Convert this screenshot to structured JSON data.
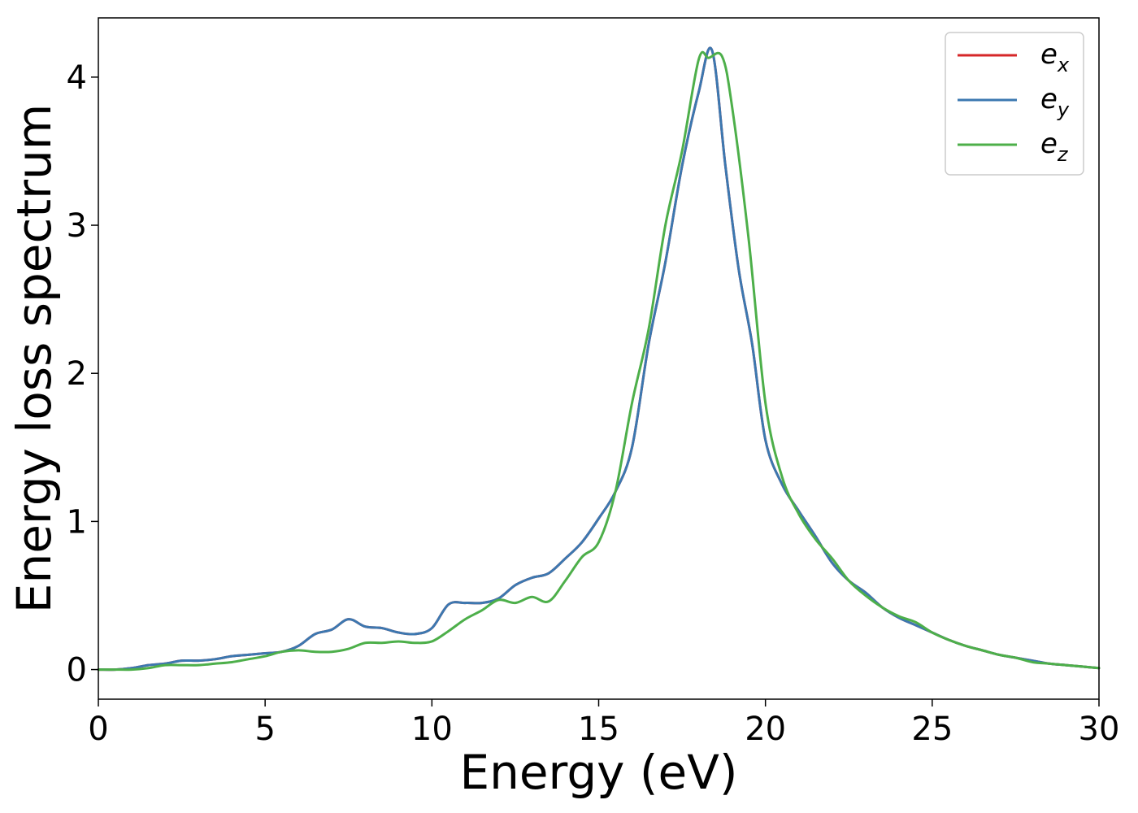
{
  "chart_data": {
    "type": "line",
    "title": "",
    "xlabel": "Energy (eV)",
    "ylabel": "Energy loss spectrum",
    "xlim": [
      0,
      30
    ],
    "ylim": [
      -0.2,
      4.4
    ],
    "xticks": [
      0,
      5,
      10,
      15,
      20,
      25,
      30
    ],
    "yticks": [
      0,
      1,
      2,
      3,
      4
    ],
    "grid": false,
    "legend_position": "top-right",
    "series": [
      {
        "name": "e_x",
        "label_base": "e",
        "label_sub": "x",
        "color": "#d62728",
        "x": [
          0,
          0.5,
          1,
          1.5,
          2,
          2.5,
          3,
          3.5,
          4,
          4.5,
          5,
          5.5,
          6,
          6.5,
          7,
          7.5,
          8,
          8.5,
          9,
          9.5,
          10,
          10.5,
          11,
          11.5,
          12,
          12.5,
          13,
          13.5,
          14,
          14.5,
          15,
          15.5,
          16,
          16.5,
          17,
          17.5,
          18,
          18.4,
          18.8,
          19.2,
          19.6,
          20,
          20.5,
          21,
          21.5,
          22,
          22.5,
          23,
          23.5,
          24,
          24.5,
          25,
          25.5,
          26,
          26.5,
          27,
          27.5,
          28,
          28.5,
          29,
          29.5,
          30
        ],
        "y": [
          0,
          0,
          0.01,
          0.03,
          0.04,
          0.06,
          0.06,
          0.07,
          0.09,
          0.1,
          0.11,
          0.12,
          0.16,
          0.24,
          0.27,
          0.34,
          0.29,
          0.28,
          0.25,
          0.24,
          0.28,
          0.44,
          0.45,
          0.45,
          0.48,
          0.57,
          0.62,
          0.65,
          0.75,
          0.86,
          1.02,
          1.2,
          1.5,
          2.2,
          2.75,
          3.4,
          3.9,
          4.18,
          3.4,
          2.7,
          2.2,
          1.55,
          1.25,
          1.07,
          0.9,
          0.72,
          0.6,
          0.52,
          0.42,
          0.35,
          0.3,
          0.25,
          0.2,
          0.16,
          0.13,
          0.1,
          0.08,
          0.06,
          0.04,
          0.03,
          0.02,
          0.01
        ]
      },
      {
        "name": "e_y",
        "label_base": "e",
        "label_sub": "y",
        "color": "#3c78b0",
        "x": [
          0,
          0.5,
          1,
          1.5,
          2,
          2.5,
          3,
          3.5,
          4,
          4.5,
          5,
          5.5,
          6,
          6.5,
          7,
          7.5,
          8,
          8.5,
          9,
          9.5,
          10,
          10.5,
          11,
          11.5,
          12,
          12.5,
          13,
          13.5,
          14,
          14.5,
          15,
          15.5,
          16,
          16.5,
          17,
          17.5,
          18,
          18.4,
          18.8,
          19.2,
          19.6,
          20,
          20.5,
          21,
          21.5,
          22,
          22.5,
          23,
          23.5,
          24,
          24.5,
          25,
          25.5,
          26,
          26.5,
          27,
          27.5,
          28,
          28.5,
          29,
          29.5,
          30
        ],
        "y": [
          0,
          0,
          0.01,
          0.03,
          0.04,
          0.06,
          0.06,
          0.07,
          0.09,
          0.1,
          0.11,
          0.12,
          0.16,
          0.24,
          0.27,
          0.34,
          0.29,
          0.28,
          0.25,
          0.24,
          0.28,
          0.44,
          0.45,
          0.45,
          0.48,
          0.57,
          0.62,
          0.65,
          0.75,
          0.86,
          1.02,
          1.2,
          1.5,
          2.2,
          2.75,
          3.4,
          3.9,
          4.18,
          3.4,
          2.7,
          2.2,
          1.55,
          1.25,
          1.07,
          0.9,
          0.72,
          0.6,
          0.52,
          0.42,
          0.35,
          0.3,
          0.25,
          0.2,
          0.16,
          0.13,
          0.1,
          0.08,
          0.06,
          0.04,
          0.03,
          0.02,
          0.01
        ]
      },
      {
        "name": "e_z",
        "label_base": "e",
        "label_sub": "z",
        "color": "#4daf4a",
        "x": [
          0,
          0.5,
          1,
          1.5,
          2,
          2.5,
          3,
          3.5,
          4,
          4.5,
          5,
          5.5,
          6,
          6.5,
          7,
          7.5,
          8,
          8.5,
          9,
          9.5,
          10,
          10.5,
          11,
          11.5,
          12,
          12.5,
          13,
          13.5,
          14,
          14.5,
          15,
          15.5,
          16,
          16.5,
          17,
          17.5,
          18,
          18.3,
          18.7,
          19,
          19.5,
          20,
          20.5,
          21,
          21.5,
          22,
          22.5,
          23,
          23.5,
          24,
          24.5,
          25,
          25.5,
          26,
          26.5,
          27,
          27.5,
          28,
          28.5,
          29,
          29.5,
          30
        ],
        "y": [
          0,
          0,
          0,
          0.01,
          0.03,
          0.03,
          0.03,
          0.04,
          0.05,
          0.07,
          0.09,
          0.12,
          0.13,
          0.12,
          0.12,
          0.14,
          0.18,
          0.18,
          0.19,
          0.18,
          0.19,
          0.26,
          0.34,
          0.4,
          0.47,
          0.45,
          0.49,
          0.46,
          0.6,
          0.76,
          0.86,
          1.2,
          1.8,
          2.3,
          3.0,
          3.5,
          4.12,
          4.13,
          4.14,
          3.8,
          2.9,
          1.8,
          1.3,
          1.05,
          0.88,
          0.75,
          0.6,
          0.5,
          0.42,
          0.36,
          0.32,
          0.25,
          0.2,
          0.16,
          0.13,
          0.1,
          0.08,
          0.05,
          0.04,
          0.03,
          0.02,
          0.01
        ]
      }
    ]
  }
}
